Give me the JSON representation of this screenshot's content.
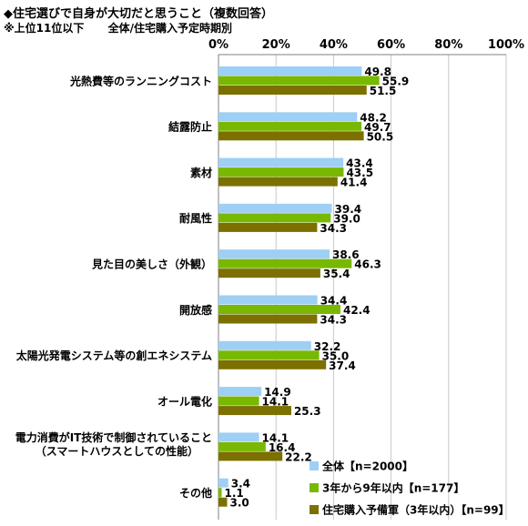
{
  "title": "◆住宅選びで自身が大切だと思うこと（複数回答）",
  "subtitle_left": "※上位11位以下",
  "subtitle_right": "全体/住宅購入予定時期別",
  "colors": {
    "series1": "#9ecff5",
    "series2": "#78b800",
    "series3": "#7b7000"
  },
  "chart_data": {
    "type": "bar",
    "orientation": "horizontal",
    "title": "◆住宅選びで自身が大切だと思うこと（複数回答）",
    "xlim": [
      0,
      100
    ],
    "xticks": [
      "0%",
      "20%",
      "40%",
      "60%",
      "80%",
      "100%"
    ],
    "grid": true,
    "legend_position": "bottom-right",
    "categories": [
      [
        "光熱費等のランニングコスト"
      ],
      [
        "結露防止"
      ],
      [
        "素材"
      ],
      [
        "耐風性"
      ],
      [
        "見た目の美しさ（外観）"
      ],
      [
        "開放感"
      ],
      [
        "太陽光発電システム等の創エネシステム"
      ],
      [
        "オール電化"
      ],
      [
        "電力消費がIT技術で制御されていること",
        "（スマートハウスとしての性能）"
      ],
      [
        "その他"
      ]
    ],
    "series": [
      {
        "name": "全体【n=2000】",
        "values": [
          49.8,
          48.2,
          43.4,
          39.4,
          38.6,
          34.4,
          32.2,
          14.9,
          14.1,
          3.4
        ]
      },
      {
        "name": "3年から9年以内【n=177】",
        "values": [
          55.9,
          49.7,
          43.5,
          39.0,
          46.3,
          42.4,
          35.0,
          14.1,
          16.4,
          1.1
        ]
      },
      {
        "name": "住宅購入予備軍（3年以内）【n=99】",
        "values": [
          51.5,
          50.5,
          41.4,
          34.3,
          35.4,
          34.3,
          37.4,
          25.3,
          22.2,
          3.0
        ]
      }
    ]
  }
}
